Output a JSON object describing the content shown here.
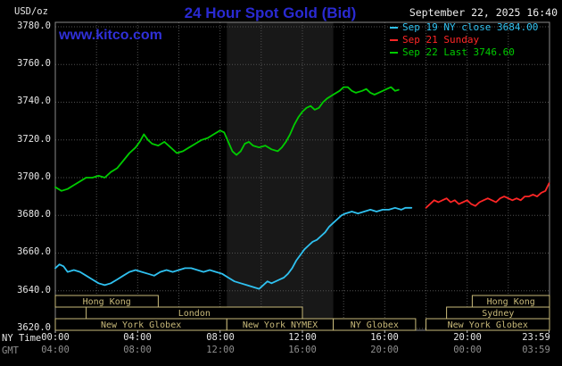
{
  "header": {
    "unit_label": "USD/oz",
    "title": "24 Hour Spot Gold (Bid)",
    "datetime": "September 22, 2025 16:40",
    "watermark": "www.kitco.com"
  },
  "colors": {
    "title_blue": "#2a2ad2",
    "watermark_blue": "#3030d8",
    "axis_text": "#e6e6e6",
    "gmt_text": "#8f8f8f"
  },
  "legend": [
    {
      "label": "Sep 19 NY close 3684.00",
      "color": "#2fc1f0"
    },
    {
      "label": "Sep 21 Sunday",
      "color": "#ff2626"
    },
    {
      "label": "Sep 22 Last 3746.60",
      "color": "#00cc00"
    }
  ],
  "axis": {
    "ny_caption": "NY Time",
    "gmt_caption": "GMT",
    "y_labels": [
      "3780.0",
      "3760.0",
      "3740.0",
      "3720.0",
      "3700.0",
      "3680.0",
      "3660.0",
      "3640.0",
      "3620.0"
    ],
    "x_ny": [
      "00:00",
      "04:00",
      "08:00",
      "12:00",
      "16:00",
      "20:00",
      "23:59"
    ],
    "x_gmt": [
      "04:00",
      "08:00",
      "12:00",
      "16:00",
      "20:00",
      "00:00",
      "03:59"
    ]
  },
  "chart_data": {
    "type": "line",
    "title": "24 Hour Spot Gold (Bid)",
    "ylabel": "USD/oz",
    "ylim": [
      3620,
      3780
    ],
    "xlim": [
      0,
      24
    ],
    "x_unit": "hour (NY time)",
    "grid": true,
    "legend_position": "top-right",
    "y_ticks": [
      3780,
      3760,
      3740,
      3720,
      3700,
      3680,
      3660,
      3640,
      3620
    ],
    "x_grid_hours": [
      2,
      4,
      6,
      8,
      10,
      12,
      14,
      16,
      18,
      20,
      22
    ],
    "x_tick_hours": [
      0,
      4,
      8,
      12,
      16,
      20,
      23.98
    ],
    "nymex_session_band": [
      8.33,
      13.5
    ],
    "colors": {
      "band": "#181818",
      "grid": "#505050",
      "border": "#8a8a8a",
      "session": "#c9ba7a"
    },
    "series": [
      {
        "id": "sep19",
        "name": "Sep 19 NY close 3684.00",
        "color": "#2fc1f0",
        "points": [
          [
            0,
            3652
          ],
          [
            0.2,
            3654
          ],
          [
            0.4,
            3653
          ],
          [
            0.6,
            3650
          ],
          [
            0.9,
            3651
          ],
          [
            1.2,
            3650
          ],
          [
            1.5,
            3648
          ],
          [
            1.8,
            3646
          ],
          [
            2.1,
            3644
          ],
          [
            2.4,
            3643
          ],
          [
            2.7,
            3644
          ],
          [
            3,
            3646
          ],
          [
            3.3,
            3648
          ],
          [
            3.6,
            3650
          ],
          [
            3.9,
            3651
          ],
          [
            4.2,
            3650
          ],
          [
            4.5,
            3649
          ],
          [
            4.8,
            3648
          ],
          [
            5.1,
            3650
          ],
          [
            5.4,
            3651
          ],
          [
            5.7,
            3650
          ],
          [
            6,
            3651
          ],
          [
            6.3,
            3652
          ],
          [
            6.6,
            3652
          ],
          [
            6.9,
            3651
          ],
          [
            7.2,
            3650
          ],
          [
            7.5,
            3651
          ],
          [
            7.8,
            3650
          ],
          [
            8.1,
            3649
          ],
          [
            8.4,
            3647
          ],
          [
            8.7,
            3645
          ],
          [
            9,
            3644
          ],
          [
            9.3,
            3643
          ],
          [
            9.6,
            3642
          ],
          [
            9.9,
            3641
          ],
          [
            10.1,
            3643
          ],
          [
            10.3,
            3645
          ],
          [
            10.5,
            3644
          ],
          [
            10.7,
            3645
          ],
          [
            10.9,
            3646
          ],
          [
            11.1,
            3647
          ],
          [
            11.3,
            3649
          ],
          [
            11.5,
            3652
          ],
          [
            11.7,
            3656
          ],
          [
            11.9,
            3659
          ],
          [
            12.1,
            3662
          ],
          [
            12.3,
            3664
          ],
          [
            12.5,
            3666
          ],
          [
            12.7,
            3667
          ],
          [
            12.9,
            3669
          ],
          [
            13.1,
            3671
          ],
          [
            13.3,
            3674
          ],
          [
            13.5,
            3676
          ],
          [
            13.7,
            3678
          ],
          [
            13.9,
            3680
          ],
          [
            14.1,
            3681
          ],
          [
            14.4,
            3682
          ],
          [
            14.7,
            3681
          ],
          [
            15,
            3682
          ],
          [
            15.3,
            3683
          ],
          [
            15.6,
            3682
          ],
          [
            15.9,
            3683
          ],
          [
            16.2,
            3683
          ],
          [
            16.5,
            3684
          ],
          [
            16.8,
            3683
          ],
          [
            17,
            3684
          ],
          [
            17.3,
            3684
          ]
        ]
      },
      {
        "id": "sep21",
        "name": "Sep 21 Sunday",
        "color": "#ff2626",
        "points": [
          [
            18,
            3684
          ],
          [
            18.2,
            3686
          ],
          [
            18.4,
            3688
          ],
          [
            18.6,
            3687
          ],
          [
            18.8,
            3688
          ],
          [
            19,
            3689
          ],
          [
            19.2,
            3687
          ],
          [
            19.4,
            3688
          ],
          [
            19.6,
            3686
          ],
          [
            19.8,
            3687
          ],
          [
            20,
            3688
          ],
          [
            20.2,
            3686
          ],
          [
            20.4,
            3685
          ],
          [
            20.6,
            3687
          ],
          [
            20.8,
            3688
          ],
          [
            21,
            3689
          ],
          [
            21.2,
            3688
          ],
          [
            21.4,
            3687
          ],
          [
            21.6,
            3689
          ],
          [
            21.8,
            3690
          ],
          [
            22,
            3689
          ],
          [
            22.2,
            3688
          ],
          [
            22.4,
            3689
          ],
          [
            22.6,
            3688
          ],
          [
            22.8,
            3690
          ],
          [
            23,
            3690
          ],
          [
            23.2,
            3691
          ],
          [
            23.4,
            3690
          ],
          [
            23.6,
            3692
          ],
          [
            23.8,
            3693
          ],
          [
            23.98,
            3697
          ]
        ]
      },
      {
        "id": "sep22",
        "name": "Sep 22 Last 3746.60",
        "color": "#00cc00",
        "points": [
          [
            0,
            3695
          ],
          [
            0.3,
            3693
          ],
          [
            0.6,
            3694
          ],
          [
            0.9,
            3696
          ],
          [
            1.2,
            3698
          ],
          [
            1.5,
            3700
          ],
          [
            1.8,
            3700
          ],
          [
            2.1,
            3701
          ],
          [
            2.4,
            3700
          ],
          [
            2.7,
            3703
          ],
          [
            3,
            3705
          ],
          [
            3.3,
            3709
          ],
          [
            3.6,
            3713
          ],
          [
            3.9,
            3716
          ],
          [
            4.1,
            3719
          ],
          [
            4.3,
            3723
          ],
          [
            4.5,
            3720
          ],
          [
            4.7,
            3718
          ],
          [
            5,
            3717
          ],
          [
            5.3,
            3719
          ],
          [
            5.6,
            3716
          ],
          [
            5.9,
            3713
          ],
          [
            6.2,
            3714
          ],
          [
            6.5,
            3716
          ],
          [
            6.8,
            3718
          ],
          [
            7.1,
            3720
          ],
          [
            7.4,
            3721
          ],
          [
            7.7,
            3723
          ],
          [
            8,
            3725
          ],
          [
            8.2,
            3724
          ],
          [
            8.4,
            3719
          ],
          [
            8.6,
            3714
          ],
          [
            8.8,
            3712
          ],
          [
            9,
            3714
          ],
          [
            9.2,
            3718
          ],
          [
            9.4,
            3719
          ],
          [
            9.6,
            3717
          ],
          [
            9.9,
            3716
          ],
          [
            10.2,
            3717
          ],
          [
            10.5,
            3715
          ],
          [
            10.8,
            3714
          ],
          [
            11,
            3716
          ],
          [
            11.2,
            3719
          ],
          [
            11.4,
            3723
          ],
          [
            11.6,
            3728
          ],
          [
            11.8,
            3732
          ],
          [
            12,
            3735
          ],
          [
            12.2,
            3737
          ],
          [
            12.4,
            3738
          ],
          [
            12.6,
            3736
          ],
          [
            12.8,
            3737
          ],
          [
            13,
            3740
          ],
          [
            13.2,
            3742
          ],
          [
            13.5,
            3744
          ],
          [
            13.8,
            3746
          ],
          [
            14,
            3748
          ],
          [
            14.2,
            3748
          ],
          [
            14.4,
            3746
          ],
          [
            14.6,
            3745
          ],
          [
            14.9,
            3746
          ],
          [
            15.1,
            3747
          ],
          [
            15.3,
            3745
          ],
          [
            15.5,
            3744
          ],
          [
            15.7,
            3745
          ],
          [
            15.9,
            3746
          ],
          [
            16.1,
            3747
          ],
          [
            16.3,
            3748
          ],
          [
            16.5,
            3746
          ],
          [
            16.67,
            3746.6
          ]
        ]
      }
    ],
    "sessions": [
      {
        "row": 0,
        "from": 0,
        "to": 5,
        "label": "Hong Kong"
      },
      {
        "row": 0,
        "from": 20.25,
        "to": 24,
        "label": "Hong Kong"
      },
      {
        "row": 1,
        "from": 1.5,
        "to": 12,
        "label": "London"
      },
      {
        "row": 1,
        "from": 19,
        "to": 24,
        "label": "Sydney"
      },
      {
        "row": 2,
        "from": 0,
        "to": 8.33,
        "label": "New York Globex"
      },
      {
        "row": 2,
        "from": 8.33,
        "to": 13.5,
        "label": "New York NYMEX"
      },
      {
        "row": 2,
        "from": 13.5,
        "to": 17.5,
        "label": "NY Globex"
      },
      {
        "row": 2,
        "from": 18,
        "to": 24,
        "label": "New York Globex"
      }
    ]
  }
}
